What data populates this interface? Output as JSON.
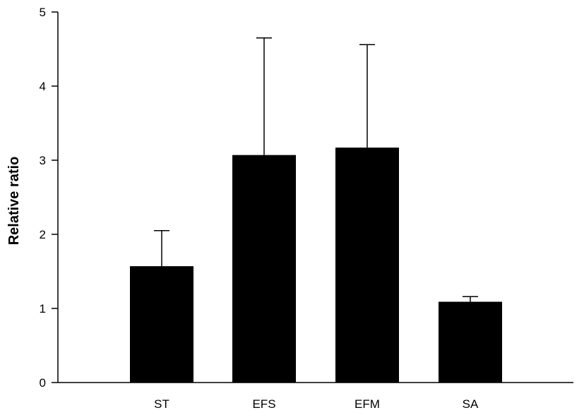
{
  "chart_data": {
    "type": "bar",
    "title": "",
    "xlabel": "",
    "ylabel": "Relative ratio",
    "categories": [
      "ST",
      "EFS",
      "EFM",
      "SA"
    ],
    "values": [
      1.57,
      3.07,
      3.17,
      1.09
    ],
    "error_upper": [
      0.48,
      1.58,
      1.39,
      0.07
    ],
    "ylim": [
      0,
      5
    ],
    "yticks": [
      "0",
      "1",
      "2",
      "3",
      "4",
      "5"
    ],
    "grid": false,
    "legend": "none",
    "bar_color": "#000000"
  }
}
